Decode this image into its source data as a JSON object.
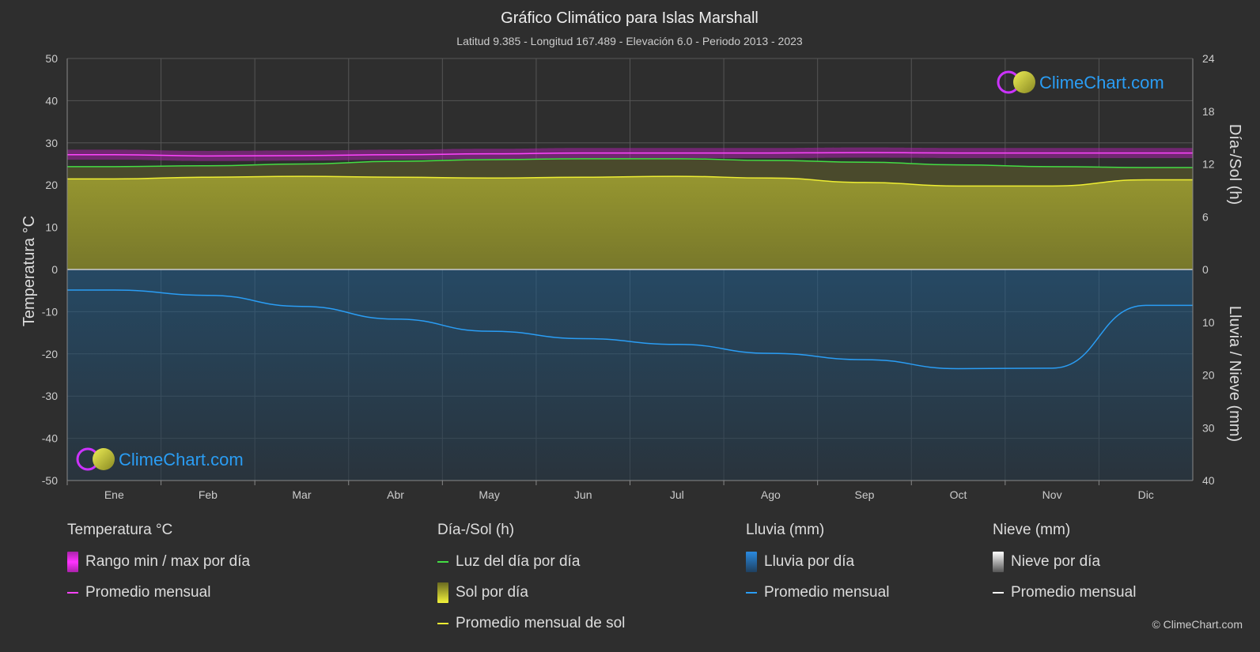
{
  "chart_data": {
    "type": "area",
    "title": "Gráfico Climático para Islas Marshall",
    "subtitle": "Latitud 9.385 - Longitud 167.489 - Elevación 6.0 - Periodo 2013 - 2023",
    "categories": [
      "Ene",
      "Feb",
      "Mar",
      "Abr",
      "May",
      "Jun",
      "Jul",
      "Ago",
      "Sep",
      "Oct",
      "Nov",
      "Dic"
    ],
    "y_left": {
      "label": "Temperatura °C",
      "range": [
        -50,
        50
      ],
      "ticks": [
        "50",
        "40",
        "30",
        "20",
        "10",
        "0",
        "-10",
        "-20",
        "-30",
        "-40",
        "-50"
      ]
    },
    "y_right_top": {
      "label": "Día-/Sol (h)",
      "range": [
        0,
        24
      ],
      "ticks": [
        "24",
        "18",
        "12",
        "6",
        "0"
      ]
    },
    "y_right_bottom": {
      "label": "Lluvia / Nieve (mm)",
      "range": [
        0,
        40
      ],
      "ticks": [
        "0",
        "10",
        "20",
        "30",
        "40"
      ]
    },
    "grid": true,
    "series": [
      {
        "name": "Promedio mensual",
        "group": "Temperatura °C",
        "unit": "°C",
        "color": "#ff44ff",
        "values": [
          27.2,
          26.9,
          27.0,
          27.2,
          27.4,
          27.6,
          27.6,
          27.6,
          27.7,
          27.6,
          27.6,
          27.6
        ]
      },
      {
        "name": "Luz del día por día",
        "group": "Día-/Sol (h)",
        "unit": "h",
        "color": "#44dd44",
        "values": [
          11.7,
          11.8,
          12.0,
          12.3,
          12.5,
          12.6,
          12.6,
          12.4,
          12.2,
          11.9,
          11.7,
          11.6
        ]
      },
      {
        "name": "Promedio mensual de sol",
        "group": "Día-/Sol (h)",
        "unit": "h",
        "color": "#eeee33",
        "values": [
          10.3,
          10.5,
          10.6,
          10.5,
          10.4,
          10.5,
          10.6,
          10.4,
          9.9,
          9.5,
          9.5,
          10.2
        ]
      },
      {
        "name": "Promedio mensual",
        "group": "Lluvia (mm)",
        "unit": "mm",
        "color": "#2a9df4",
        "values": [
          3.9,
          4.9,
          7.0,
          9.4,
          11.7,
          13.1,
          14.2,
          15.9,
          17.1,
          18.8,
          18.7,
          6.8
        ]
      }
    ]
  },
  "legend": {
    "temp": {
      "header": "Temperatura °C",
      "item1": "Rango min / max por día",
      "item2": "Promedio mensual",
      "color1": "#cc22cc",
      "color2": "#ff44ff"
    },
    "sun": {
      "header": "Día-/Sol (h)",
      "item1": "Luz del día por día",
      "item2": "Sol por día",
      "item3": "Promedio mensual de sol",
      "color1": "#44dd44",
      "color2": "#c8c83a",
      "color3": "#eeee33"
    },
    "rain": {
      "header": "Lluvia (mm)",
      "item1": "Lluvia por día",
      "item2": "Promedio mensual",
      "color1": "#2a7fc8",
      "color2": "#2a9df4"
    },
    "snow": {
      "header": "Nieve (mm)",
      "item1": "Nieve por día",
      "item2": "Promedio mensual",
      "color1": "#dddddd",
      "color2": "#ffffff"
    }
  },
  "branding": {
    "logo_text": "ClimeChart.com",
    "copyright": "© ClimeChart.com"
  }
}
